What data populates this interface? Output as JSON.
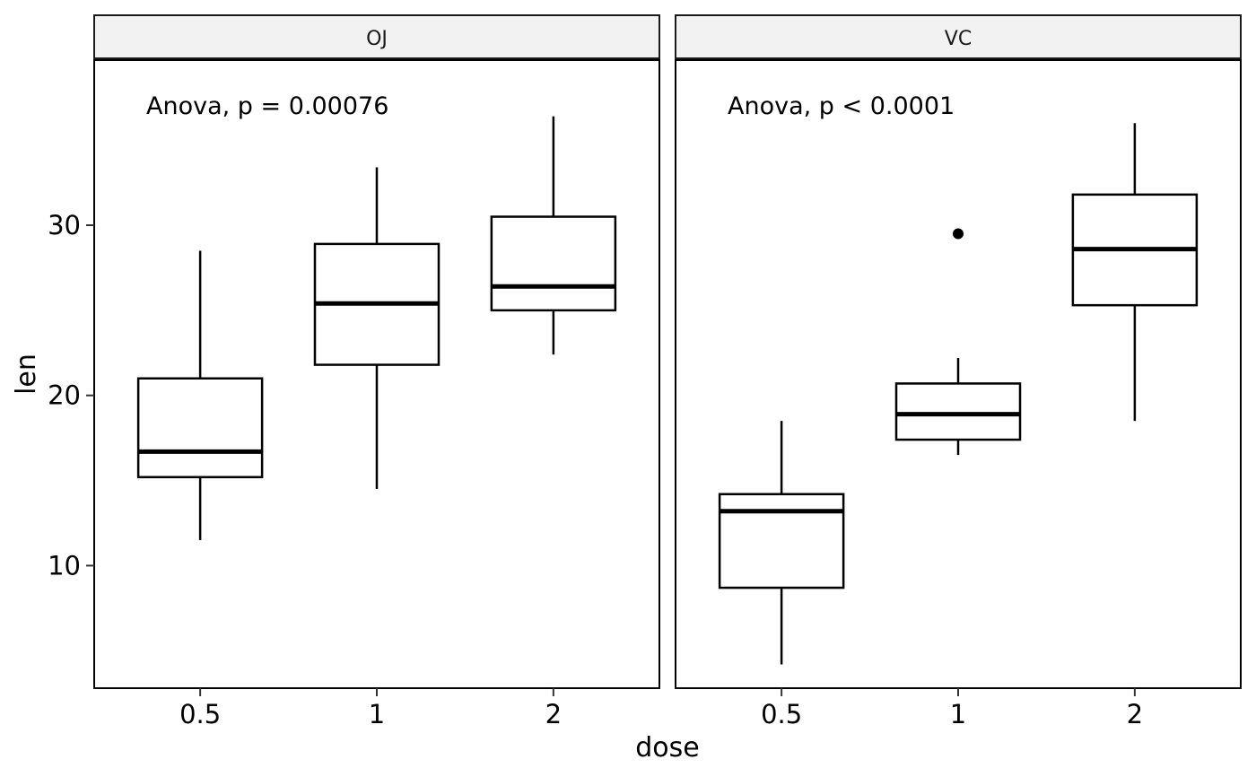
{
  "chart_data": {
    "type": "boxplot",
    "xlabel": "dose",
    "ylabel": "len",
    "categories": [
      "0.5",
      "1",
      "2"
    ],
    "ylim": [
      2.8,
      39.7
    ],
    "yticks": [
      10,
      20,
      30
    ],
    "grid": false,
    "panels": [
      {
        "facet": "OJ",
        "annotation": "Anova, p = 0.00076",
        "boxes": [
          {
            "x": "0.5",
            "whisker_low": 11.5,
            "q1": 15.2,
            "median": 16.7,
            "q3": 21.0,
            "whisker_high": 28.5,
            "outliers": []
          },
          {
            "x": "1",
            "whisker_low": 14.5,
            "q1": 21.8,
            "median": 25.4,
            "q3": 28.9,
            "whisker_high": 33.4,
            "outliers": []
          },
          {
            "x": "2",
            "whisker_low": 22.4,
            "q1": 25.0,
            "median": 26.4,
            "q3": 30.5,
            "whisker_high": 36.4,
            "outliers": []
          }
        ]
      },
      {
        "facet": "VC",
        "annotation": "Anova, p < 0.0001",
        "boxes": [
          {
            "x": "0.5",
            "whisker_low": 4.2,
            "q1": 8.7,
            "median": 13.2,
            "q3": 14.2,
            "whisker_high": 18.5,
            "outliers": []
          },
          {
            "x": "1",
            "whisker_low": 16.5,
            "q1": 17.4,
            "median": 18.9,
            "q3": 20.7,
            "whisker_high": 22.2,
            "outliers": [
              29.5
            ]
          },
          {
            "x": "2",
            "whisker_low": 18.5,
            "q1": 25.3,
            "median": 28.6,
            "q3": 31.8,
            "whisker_high": 36.0,
            "outliers": []
          }
        ]
      }
    ]
  }
}
